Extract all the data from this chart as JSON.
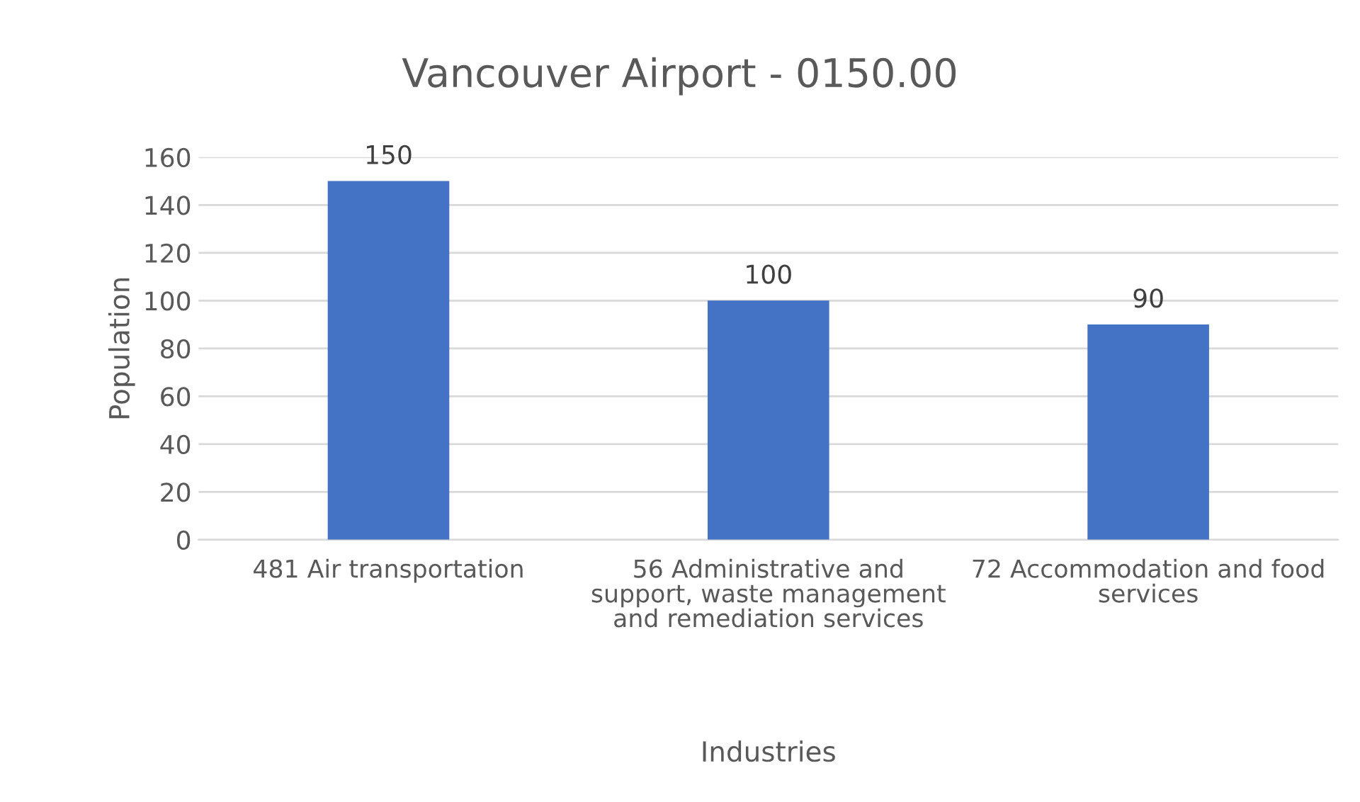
{
  "chart_data": {
    "type": "bar",
    "title": "Vancouver Airport - 0150.00",
    "xlabel": "Industries",
    "ylabel": "Population",
    "categories": [
      "481 Air transportation",
      "56 Administrative and support, waste management and remediation services",
      "72 Accommodation and food services"
    ],
    "values": [
      150,
      100,
      90
    ],
    "color": "#4472c4",
    "ylim": [
      0,
      160
    ],
    "yticks": [
      0,
      20,
      40,
      60,
      80,
      100,
      120,
      140,
      160
    ],
    "grid": "y",
    "data_labels": true,
    "legend": false
  }
}
